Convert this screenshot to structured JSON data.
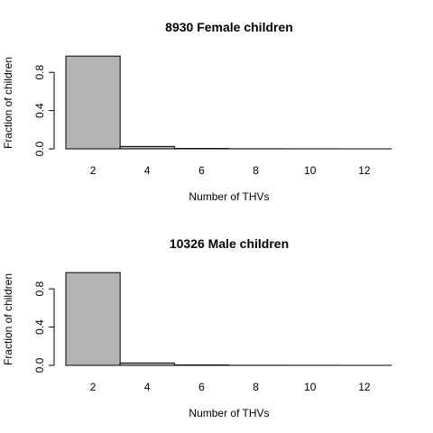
{
  "chart_data": [
    {
      "type": "bar",
      "title": "8930 Female children",
      "xlabel": "Number of THVs",
      "ylabel": "Fraction of children",
      "bins": [
        [
          1,
          3
        ],
        [
          3,
          5
        ],
        [
          5,
          7
        ],
        [
          7,
          9
        ],
        [
          9,
          11
        ],
        [
          11,
          13
        ]
      ],
      "values": [
        0.97,
        0.025,
        0.004,
        0.001,
        0.0005,
        0.0002
      ],
      "xticks": [
        "2",
        "4",
        "6",
        "8",
        "10",
        "12"
      ],
      "yticks": [
        "0.0",
        "0.4",
        "0.8"
      ],
      "xlim": [
        1,
        13
      ],
      "ylim": [
        0,
        1
      ],
      "bar_color": "#b3b3b3",
      "grid": false
    },
    {
      "type": "bar",
      "title": "10326 Male children",
      "xlabel": "Number of THVs",
      "ylabel": "Fraction of children",
      "bins": [
        [
          1,
          3
        ],
        [
          3,
          5
        ],
        [
          5,
          7
        ],
        [
          7,
          9
        ],
        [
          9,
          11
        ],
        [
          11,
          13
        ]
      ],
      "values": [
        0.97,
        0.025,
        0.004,
        0.001,
        0.0005,
        0.0002
      ],
      "xticks": [
        "2",
        "4",
        "6",
        "8",
        "10",
        "12"
      ],
      "yticks": [
        "0.0",
        "0.4",
        "0.8"
      ],
      "xlim": [
        1,
        13
      ],
      "ylim": [
        0,
        1
      ],
      "bar_color": "#b3b3b3",
      "grid": false
    }
  ]
}
